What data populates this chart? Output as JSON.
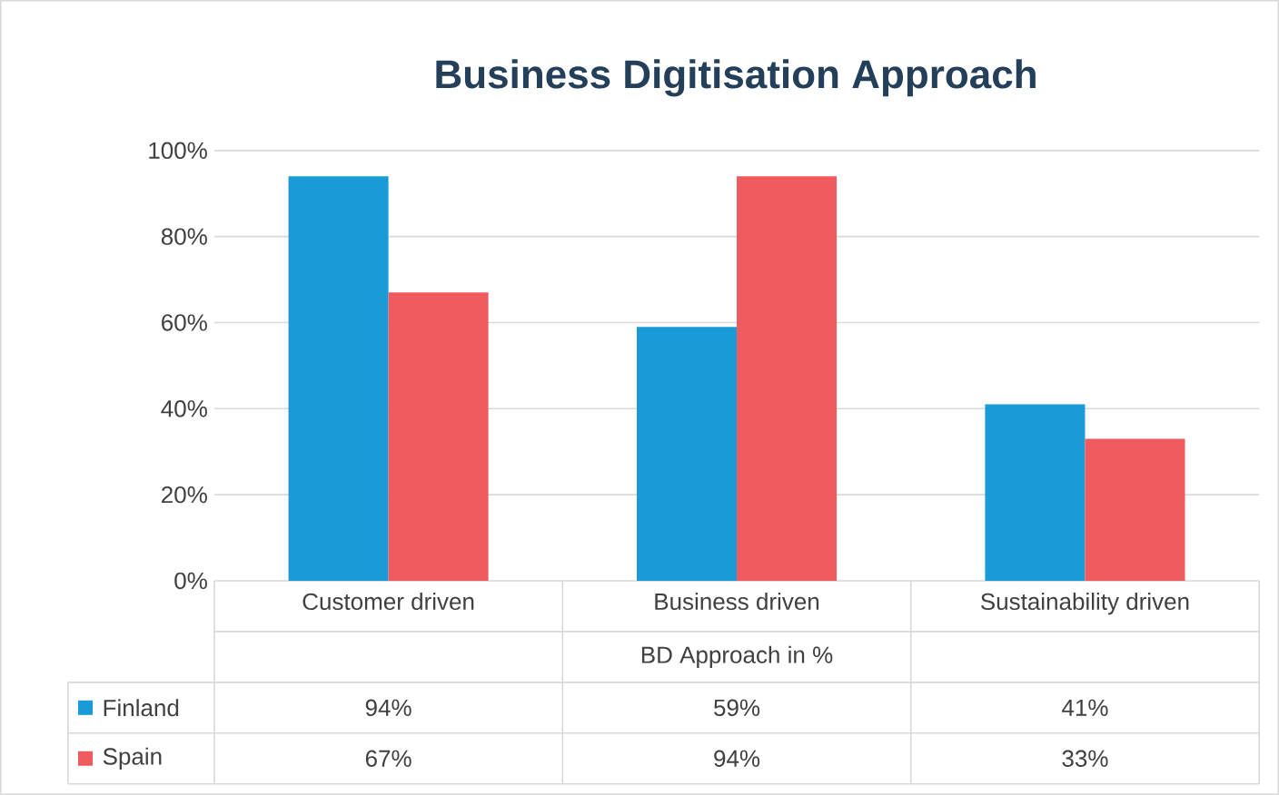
{
  "chart_data": {
    "type": "bar",
    "title": "Business Digitisation Approach",
    "xlabel": "BD Approach in %",
    "categories": [
      "Customer driven",
      "Business driven",
      "Sustainability driven"
    ],
    "series": [
      {
        "name": "Finland",
        "color": "#1a9ad6",
        "values": [
          94,
          59,
          41
        ],
        "value_labels": [
          "94%",
          "59%",
          "41%"
        ]
      },
      {
        "name": "Spain",
        "color": "#ef5a5f",
        "values": [
          67,
          94,
          33
        ],
        "value_labels": [
          "67%",
          "94%",
          "33%"
        ]
      }
    ],
    "ylim": [
      0,
      100
    ],
    "yticks": [
      {
        "value": 0,
        "label": "0%"
      },
      {
        "value": 20,
        "label": "20%"
      },
      {
        "value": 40,
        "label": "40%"
      },
      {
        "value": 60,
        "label": "60%"
      },
      {
        "value": 80,
        "label": "80%"
      },
      {
        "value": 100,
        "label": "100%"
      }
    ],
    "grid": "y",
    "legend": "bottom"
  }
}
